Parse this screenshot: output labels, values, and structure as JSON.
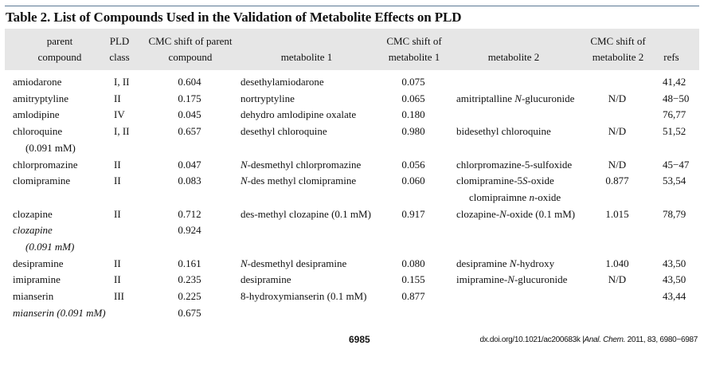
{
  "title": "Table 2.  List of Compounds Used in the Validation of Metabolite Effects on PLD",
  "headers": {
    "parent": [
      "parent",
      "compound"
    ],
    "class": [
      "PLD",
      "class"
    ],
    "cmc_parent": [
      "CMC shift of parent",
      "compound"
    ],
    "met1": [
      "",
      "metabolite 1"
    ],
    "cmc_met1": [
      "CMC shift of",
      "metabolite 1"
    ],
    "met2": [
      "",
      "metabolite 2"
    ],
    "cmc_met2": [
      "CMC shift of",
      "metabolite 2"
    ],
    "refs": [
      "",
      "refs"
    ]
  },
  "rows": [
    {
      "parent": [
        "amiodarone"
      ],
      "class": "I, II",
      "cmc_parent": "0.604",
      "met1": [
        "desethylamiodarone"
      ],
      "cmc_met1": "0.075",
      "met2": [],
      "cmc_met2": "",
      "refs": "41,42"
    },
    {
      "parent": [
        "amitryptyline"
      ],
      "class": "II",
      "cmc_parent": "0.175",
      "met1": [
        "nortryptyline"
      ],
      "cmc_met1": "0.065",
      "met2": [
        "amitriptalline ",
        {
          "i": "N"
        },
        "-glucuronide"
      ],
      "cmc_met2": "N/D",
      "refs": "48−50"
    },
    {
      "parent": [
        "amlodipine"
      ],
      "class": "IV",
      "cmc_parent": "0.045",
      "met1": [
        "dehydro amlodipine oxalate"
      ],
      "cmc_met1": "0.180",
      "met2": [],
      "cmc_met2": "",
      "refs": "76,77"
    },
    {
      "parent": [
        "chloroquine"
      ],
      "class": "I, II",
      "cmc_parent": "0.657",
      "met1": [
        "desethyl chloroquine"
      ],
      "cmc_met1": "0.980",
      "met2": [
        "bidesethyl chloroquine"
      ],
      "cmc_met2": "N/D",
      "refs": "51,52"
    },
    {
      "parent": [
        "(0.091 mM)"
      ],
      "parent_indent": true,
      "class": "",
      "cmc_parent": "",
      "met1": [],
      "cmc_met1": "",
      "met2": [],
      "cmc_met2": "",
      "refs": ""
    },
    {
      "parent": [
        "chlorpromazine"
      ],
      "class": "II",
      "cmc_parent": "0.047",
      "met1": [
        {
          "i": "N"
        },
        "-desmethyl chlorpromazine"
      ],
      "cmc_met1": "0.056",
      "met2": [
        "chlorpromazine-5-sulfoxide"
      ],
      "cmc_met2": "N/D",
      "refs": "45−47"
    },
    {
      "parent": [
        "clomipramine"
      ],
      "class": "II",
      "cmc_parent": "0.083",
      "met1": [
        {
          "i": "N"
        },
        "-des methyl clomipramine"
      ],
      "cmc_met1": "0.060",
      "met2": [
        "clomipramine-5",
        {
          "i": "S"
        },
        "-oxide"
      ],
      "cmc_met2": "0.877",
      "refs": "53,54"
    },
    {
      "parent": [],
      "class": "",
      "cmc_parent": "",
      "met1": [],
      "cmc_met1": "",
      "met2": [
        "clomipraimne ",
        {
          "i": "n"
        },
        "-oxide"
      ],
      "met2_indent": true,
      "cmc_met2": "",
      "refs": ""
    },
    {
      "parent": [
        "clozapine"
      ],
      "class": "II",
      "cmc_parent": "0.712",
      "met1": [
        "des-methyl clozapine (0.1 mM)"
      ],
      "cmc_met1": "0.917",
      "met2": [
        "clozapine-",
        {
          "i": "N"
        },
        "-oxide (0.1 mM)"
      ],
      "cmc_met2": "1.015",
      "refs": "78,79"
    },
    {
      "parent": [
        {
          "i": "clozapine"
        }
      ],
      "class": "",
      "cmc_parent": "0.924",
      "met1": [],
      "cmc_met1": "",
      "met2": [],
      "cmc_met2": "",
      "refs": ""
    },
    {
      "parent": [
        {
          "i": "(0.091 mM)"
        }
      ],
      "parent_indent": true,
      "class": "",
      "cmc_parent": "",
      "met1": [],
      "cmc_met1": "",
      "met2": [],
      "cmc_met2": "",
      "refs": ""
    },
    {
      "parent": [
        "desipramine"
      ],
      "class": "II",
      "cmc_parent": "0.161",
      "met1": [
        {
          "i": "N"
        },
        "-desmethyl desipramine"
      ],
      "cmc_met1": "0.080",
      "met2": [
        "desipramine ",
        {
          "i": "N"
        },
        "-hydroxy"
      ],
      "cmc_met2": "1.040",
      "refs": "43,50"
    },
    {
      "parent": [
        "imipramine"
      ],
      "class": "II",
      "cmc_parent": "0.235",
      "met1": [
        "desipramine"
      ],
      "cmc_met1": "0.155",
      "met2": [
        "imipramine-",
        {
          "i": "N"
        },
        "-glucuronide"
      ],
      "cmc_met2": "N/D",
      "refs": "43,50"
    },
    {
      "parent": [
        "mianserin"
      ],
      "class": "III",
      "cmc_parent": "0.225",
      "met1": [
        "8-hydroxymianserin (0.1 mM)"
      ],
      "cmc_met1": "0.877",
      "met2": [],
      "cmc_met2": "",
      "refs": "43,44"
    },
    {
      "parent": [
        {
          "i": "mianserin (0.091 mM)"
        }
      ],
      "class": "",
      "cmc_parent": "0.675",
      "met1": [],
      "cmc_met1": "",
      "met2": [],
      "cmc_met2": "",
      "refs": ""
    }
  ],
  "footer": {
    "page": "6985",
    "doi": "dx.doi.org/10.1021/ac200683k",
    "journal": "Anal. Chem.",
    "citation": " 2011, 83, 6980−6987"
  }
}
